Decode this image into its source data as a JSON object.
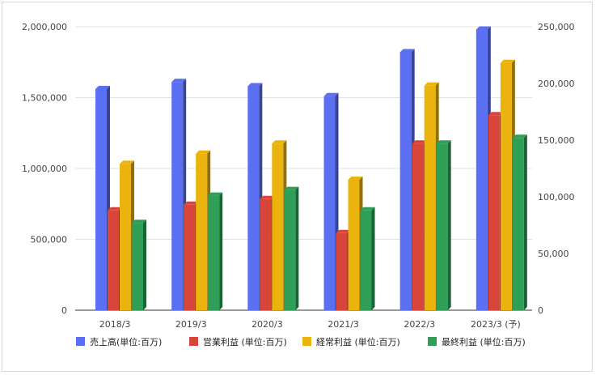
{
  "chart_data": {
    "type": "bar",
    "style": "3d-clustered-column",
    "categories": [
      "2018/3",
      "2019/3",
      "2020/3",
      "2021/3",
      "2022/3",
      "2023/3 (予)"
    ],
    "left_axis": {
      "ticks": [
        "0",
        "500,000",
        "1,000,000",
        "1,500,000",
        "2,000,000"
      ],
      "ylim": [
        0,
        2000000
      ]
    },
    "right_axis": {
      "ticks": [
        "0",
        "50,000",
        "100,000",
        "150,000",
        "200,000",
        "250,000"
      ],
      "ylim": [
        0,
        250000
      ]
    },
    "series": [
      {
        "name": "売上高(単位:百万)",
        "axis": "left",
        "color": "#5b6ff2",
        "values": [
          1560000,
          1610000,
          1580000,
          1510000,
          1820000,
          1980000
        ]
      },
      {
        "name": "営業利益 (単位:百万)",
        "axis": "right",
        "color": "#d8453a",
        "values": [
          88000,
          93000,
          98000,
          68000,
          147000,
          172000
        ]
      },
      {
        "name": "経常利益 (単位:百万)",
        "axis": "right",
        "color": "#eab30e",
        "values": [
          129000,
          138000,
          147000,
          115000,
          198000,
          218000
        ]
      },
      {
        "name": "最終利益 (単位:百万)",
        "axis": "right",
        "color": "#2f9e57",
        "values": [
          77000,
          101000,
          106000,
          88000,
          147000,
          152000
        ]
      }
    ],
    "grid": true,
    "legend_position": "bottom"
  }
}
